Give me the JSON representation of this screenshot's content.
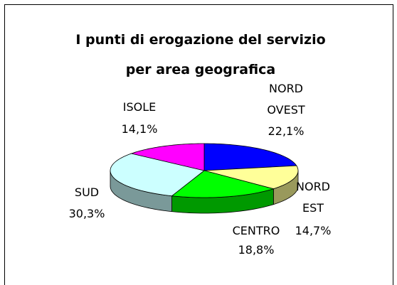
{
  "chart_data": {
    "type": "pie3d",
    "title": [
      "I punti di erogazione del servizio",
      "per area geografica"
    ],
    "categories": [
      "NORD OVEST",
      "NORD EST",
      "CENTRO",
      "SUD",
      "ISOLE"
    ],
    "values": [
      22.1,
      14.7,
      18.8,
      30.3,
      14.1
    ],
    "value_labels": [
      "22,1%",
      "14,7%",
      "18,8%",
      "30,3%",
      "14,1%"
    ],
    "colors": [
      "#0000ff",
      "#ffff99",
      "#00ff00",
      "#ccffff",
      "#ff00ff"
    ]
  }
}
